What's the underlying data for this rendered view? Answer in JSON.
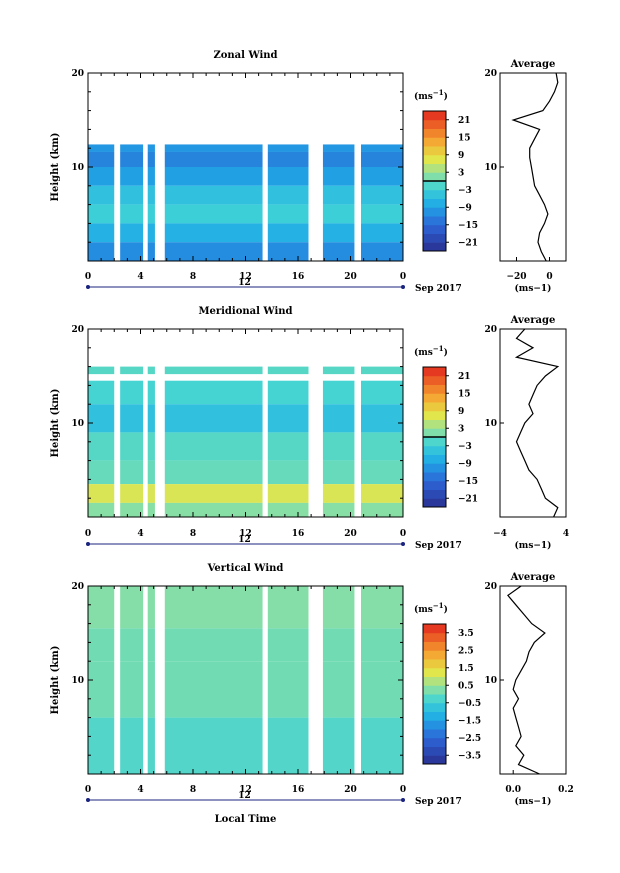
{
  "chart_data": [
    {
      "type": "heatmap",
      "title": "Zonal Wind",
      "ylabel": "Height (km)",
      "y_ticks": [
        "20",
        "10"
      ],
      "x_ticks": [
        "0",
        "4",
        "8",
        "12",
        "16",
        "20",
        "0"
      ],
      "date_label": "12",
      "date_suffix": "Sep 2017",
      "xlim": [
        0,
        24
      ],
      "ylim": [
        0,
        20
      ],
      "colorbar": {
        "unit_base": "(ms",
        "unit_exp": "−1",
        "unit_close": ")",
        "ticks": [
          "21",
          "15",
          "9",
          "3",
          "−3",
          "−9",
          "−15",
          "−21"
        ],
        "range": [
          -24,
          24
        ],
        "zero_line": 0
      },
      "data_gaps_hours": [
        [
          2.0,
          2.45
        ],
        [
          4.2,
          4.55
        ],
        [
          5.1,
          5.85
        ],
        [
          13.3,
          13.7
        ],
        [
          16.8,
          17.9
        ],
        [
          20.3,
          20.8
        ]
      ],
      "bands": [
        {
          "y0": 11.6,
          "y1": 12.4,
          "value": -10
        },
        {
          "y0": 10.0,
          "y1": 11.6,
          "value": -12
        },
        {
          "y0": 8.0,
          "y1": 10.0,
          "value": -9
        },
        {
          "y0": 6.0,
          "y1": 8.0,
          "value": -5
        },
        {
          "y0": 4.0,
          "y1": 6.0,
          "value": -3
        },
        {
          "y0": 2.0,
          "y1": 4.0,
          "value": -7
        },
        {
          "y0": 0.0,
          "y1": 2.0,
          "value": -11
        }
      ],
      "average_profile": {
        "title": "Average",
        "x_ticks": [
          "−20",
          "0"
        ],
        "xlim": [
          -30,
          10
        ],
        "unit": "(ms−1)",
        "y": [
          0,
          1,
          2,
          3,
          4,
          5,
          6,
          7,
          8,
          9,
          10,
          11,
          12,
          13,
          14,
          15,
          16,
          17,
          18,
          19,
          20
        ],
        "x": [
          -2,
          -5,
          -7,
          -6,
          -3,
          -1,
          -3,
          -6,
          -9,
          -10,
          -11,
          -12,
          -12,
          -9,
          -6,
          -22,
          -4,
          0,
          3,
          5,
          4
        ]
      }
    },
    {
      "type": "heatmap",
      "title": "Meridional Wind",
      "ylabel": "Height (km)",
      "y_ticks": [
        "20",
        "10"
      ],
      "x_ticks": [
        "0",
        "4",
        "8",
        "12",
        "16",
        "20",
        "0"
      ],
      "date_label": "12",
      "date_suffix": "Sep 2017",
      "xlim": [
        0,
        24
      ],
      "ylim": [
        0,
        20
      ],
      "colorbar": {
        "unit_base": "(ms",
        "unit_exp": "−1",
        "unit_close": ")",
        "ticks": [
          "21",
          "15",
          "9",
          "3",
          "−3",
          "−9",
          "−15",
          "−21"
        ],
        "range": [
          -24,
          24
        ],
        "zero_line": 0
      },
      "data_gaps_hours": [
        [
          2.0,
          2.45
        ],
        [
          4.2,
          4.55
        ],
        [
          5.1,
          5.85
        ],
        [
          13.3,
          13.7
        ],
        [
          16.8,
          17.9
        ],
        [
          20.3,
          20.8
        ]
      ],
      "bands": [
        {
          "y0": 15.2,
          "y1": 16.0,
          "value": -1
        },
        {
          "y0": 12.0,
          "y1": 14.5,
          "value": -2
        },
        {
          "y0": 9.0,
          "y1": 12.0,
          "value": -5
        },
        {
          "y0": 6.0,
          "y1": 9.0,
          "value": -1
        },
        {
          "y0": 3.5,
          "y1": 6.0,
          "value": 0
        },
        {
          "y0": 1.5,
          "y1": 3.5,
          "value": 7
        },
        {
          "y0": 0.0,
          "y1": 1.5,
          "value": 2
        }
      ],
      "average_profile": {
        "title": "Average",
        "x_ticks": [
          "−4",
          "4"
        ],
        "xlim": [
          -4,
          4
        ],
        "unit": "(ms−1)",
        "y": [
          0,
          1,
          2,
          3,
          4,
          5,
          6,
          7,
          8,
          9,
          10,
          11,
          12,
          13,
          14,
          15,
          16,
          17,
          18,
          19,
          20
        ],
        "x": [
          2.5,
          3,
          1.5,
          1,
          0.5,
          -0.5,
          -1,
          -1.5,
          -2,
          -1.5,
          -1,
          0,
          -0.5,
          0,
          0.5,
          1.5,
          3,
          -2,
          0,
          -2,
          -1
        ]
      }
    },
    {
      "type": "heatmap",
      "title": "Vertical Wind",
      "ylabel": "Height (km)",
      "xlabel": "Local Time",
      "y_ticks": [
        "20",
        "10"
      ],
      "x_ticks": [
        "0",
        "4",
        "8",
        "12",
        "16",
        "20",
        "0"
      ],
      "date_label": "12",
      "date_suffix": "Sep 2017",
      "xlim": [
        0,
        24
      ],
      "ylim": [
        0,
        20
      ],
      "colorbar": {
        "unit_base": "(ms",
        "unit_exp": "−1",
        "unit_close": ")",
        "ticks": [
          "3.5",
          "2.5",
          "1.5",
          "0.5",
          "−0.5",
          "−1.5",
          "−2.5",
          "−3.5"
        ],
        "range": [
          -4,
          4
        ],
        "zero_line": null
      },
      "data_gaps_hours": [
        [
          2.0,
          2.45
        ],
        [
          4.2,
          4.55
        ],
        [
          5.1,
          5.85
        ],
        [
          13.3,
          13.7
        ],
        [
          16.8,
          17.9
        ],
        [
          20.3,
          20.8
        ]
      ],
      "bands": [
        {
          "y0": 15.5,
          "y1": 20.0,
          "value": 0.3
        },
        {
          "y0": 12.0,
          "y1": 15.5,
          "value": 0.1
        },
        {
          "y0": 6.0,
          "y1": 12.0,
          "value": 0.1
        },
        {
          "y0": 0.0,
          "y1": 6.0,
          "value": -0.2
        }
      ],
      "average_profile": {
        "title": "Average",
        "x_ticks": [
          "0.0",
          "0.2"
        ],
        "xlim": [
          -0.05,
          0.2
        ],
        "unit": "(ms−1)",
        "y": [
          0,
          1,
          2,
          3,
          4,
          5,
          6,
          7,
          8,
          9,
          10,
          11,
          12,
          13,
          14,
          15,
          16,
          17,
          18,
          19,
          20
        ],
        "x": [
          0.1,
          0.02,
          0.04,
          0.01,
          0.03,
          0.02,
          0.01,
          0.0,
          0.02,
          0.0,
          0.01,
          0.03,
          0.05,
          0.06,
          0.08,
          0.12,
          0.07,
          0.04,
          0.01,
          -0.02,
          0.03
        ]
      }
    }
  ]
}
